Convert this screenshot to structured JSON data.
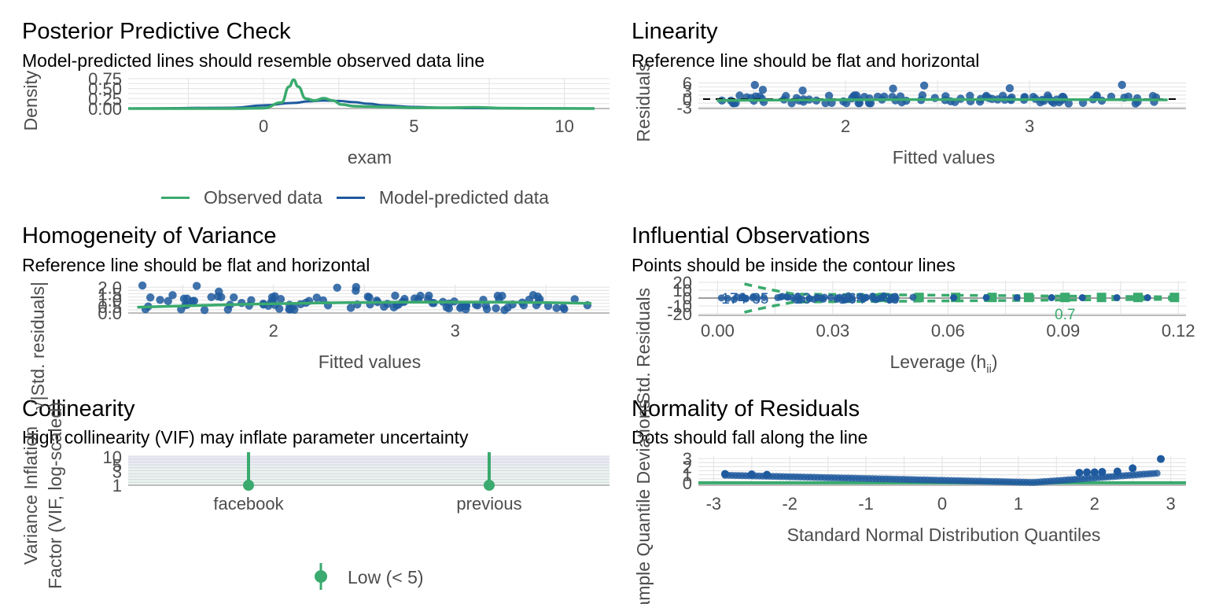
{
  "colors": {
    "observed": "#3aaa6e",
    "predicted": "#1f5a9e",
    "points": "#1f5a9e",
    "reference": "#3aaa6e",
    "grid": "#e6e6e6"
  },
  "panels": {
    "ppc": {
      "title": "Posterior Predictive Check",
      "subtitle": "Model-predicted lines should resemble observed data line",
      "xlabel": "exam",
      "ylabel": "Density",
      "legend": [
        "Observed data",
        "Model-predicted data"
      ]
    },
    "linearity": {
      "title": "Linearity",
      "subtitle": "Reference line should be flat and horizontal",
      "xlabel": "Fitted values",
      "ylabel": "Residuals"
    },
    "homogeneity": {
      "title": "Homogeneity of Variance",
      "subtitle": "Reference line should be flat and horizontal",
      "xlabel": "Fitted values",
      "ylabel": "√|Std. residuals|"
    },
    "influential": {
      "title": "Influential Observations",
      "subtitle": "Points should be inside the contour lines",
      "xlabel": "Leverage (h",
      "xlabel_sub": "ii",
      "xlabel_end": ")",
      "ylabel": "Std. Residuals"
    },
    "collinearity": {
      "title": "Collinearity",
      "subtitle": "High collinearity (VIF) may inflate parameter uncertainty",
      "ylabel_1": "Variance Inflation",
      "ylabel_2": "Factor (VIF, log-scaled)",
      "legend": [
        "Low (< 5)"
      ]
    },
    "normality": {
      "title": "Normality of Residuals",
      "subtitle": "Dots should fall along the line",
      "xlabel": "Standard Normal Distribution Quantiles",
      "ylabel": "Sample Quantile Deviations"
    }
  },
  "chart_data": [
    {
      "id": "ppc",
      "type": "line",
      "xlim": [
        -4.5,
        11.5
      ],
      "ylim": [
        0,
        0.75
      ],
      "xticks": [
        0,
        5,
        10
      ],
      "yticks": [
        "0.00",
        "0.25",
        "0.50",
        "0.75"
      ],
      "series": [
        {
          "name": "Observed data",
          "x": [
            -4.5,
            -1,
            0,
            0.6,
            0.85,
            1.0,
            1.15,
            1.4,
            1.7,
            2.0,
            2.3,
            2.6,
            3.0,
            3.5,
            4,
            5,
            6,
            7,
            8,
            9,
            11
          ],
          "y": [
            0,
            0,
            0.01,
            0.15,
            0.55,
            0.72,
            0.55,
            0.25,
            0.2,
            0.26,
            0.2,
            0.1,
            0.06,
            0.05,
            0.04,
            0.02,
            0.02,
            0.03,
            0.01,
            0.005,
            0.0
          ]
        },
        {
          "name": "Model-predicted data",
          "x": [
            -4.5,
            -1,
            0,
            1,
            1.5,
            2,
            2.5,
            3,
            3.5,
            4,
            5,
            6,
            7,
            8,
            11
          ],
          "y": [
            0,
            0.02,
            0.08,
            0.14,
            0.18,
            0.2,
            0.19,
            0.16,
            0.12,
            0.08,
            0.04,
            0.02,
            0.01,
            0.005,
            0
          ]
        }
      ]
    },
    {
      "id": "linearity",
      "type": "scatter",
      "xlim": [
        1.2,
        3.85
      ],
      "ylim": [
        -3.5,
        7
      ],
      "xticks": [
        2,
        3
      ],
      "yticks": [
        -3,
        0,
        3,
        6
      ]
    },
    {
      "id": "homogeneity",
      "type": "scatter",
      "xlim": [
        1.2,
        3.85
      ],
      "ylim": [
        0,
        2.2
      ],
      "xticks": [
        2,
        3
      ],
      "yticks": [
        "0.0",
        "0.5",
        "1.0",
        "1.5",
        "2.0"
      ]
    },
    {
      "id": "influential",
      "type": "scatter",
      "xlim": [
        -0.005,
        0.122
      ],
      "ylim": [
        -22,
        22
      ],
      "xticks": [
        "0.00",
        "0.03",
        "0.06",
        "0.09",
        "0.12"
      ],
      "yticks": [
        -20,
        -10,
        0,
        10,
        20
      ],
      "labels": [
        "174",
        "35",
        "13",
        "64",
        "48"
      ],
      "contour_label": "0.7"
    },
    {
      "id": "collinearity",
      "type": "scatter",
      "categories": [
        "facebook",
        "previous"
      ],
      "values": [
        1.0,
        1.0
      ],
      "ylim": [
        1,
        10
      ],
      "yticks": [
        1,
        3,
        5,
        10
      ],
      "group": "Low (< 5)"
    },
    {
      "id": "normality",
      "type": "scatter",
      "xlim": [
        -3.2,
        3.2
      ],
      "ylim": [
        -0.3,
        3.3
      ],
      "xticks": [
        -3,
        -2,
        -1,
        0,
        1,
        2,
        3
      ],
      "yticks": [
        0,
        1,
        2,
        3
      ]
    }
  ]
}
